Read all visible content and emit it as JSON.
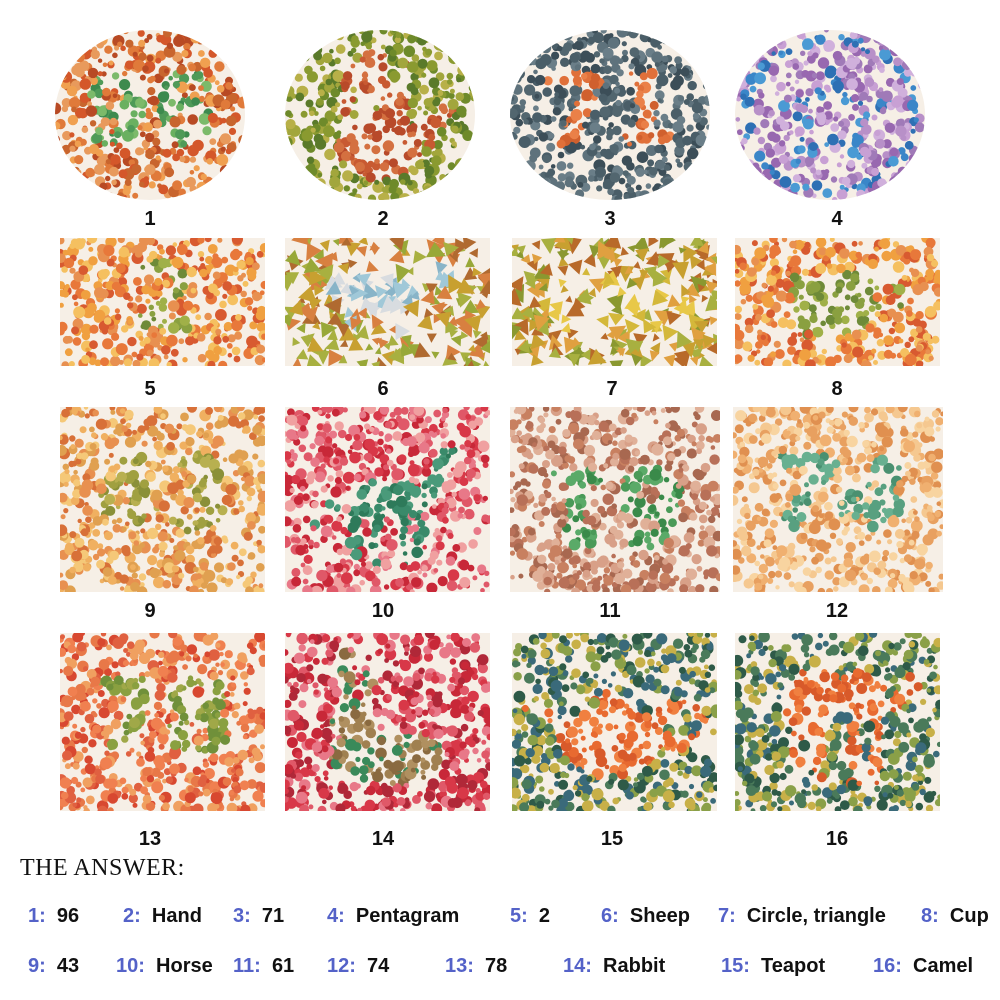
{
  "colors": {
    "answer_number": "#5462c8",
    "text": "#111111",
    "background": "#ffffff"
  },
  "plates": [
    {
      "number": "1",
      "figure_text": "96",
      "figure_shape": "",
      "palette": [
        "#e07a3a",
        "#d4572a",
        "#f0a050",
        "#c8652e",
        "#e89a5c",
        "#b84a24"
      ],
      "figure_palette": [
        "#4f9a58",
        "#6ab060",
        "#3d8a4e",
        "#7cba6a"
      ]
    },
    {
      "number": "2",
      "figure_text": "",
      "figure_shape": "hand",
      "palette": [
        "#8a9a30",
        "#6e8a2a",
        "#a2a63c",
        "#5a7a2a",
        "#b8b048"
      ],
      "figure_palette": [
        "#c85a32",
        "#d47040",
        "#b84a2a"
      ]
    },
    {
      "number": "3",
      "figure_text": "71",
      "figure_shape": "",
      "palette": [
        "#4a5e68",
        "#5e727c",
        "#3c4e58",
        "#6a7e88",
        "#52666f"
      ],
      "figure_palette": [
        "#e0703a",
        "#d0602e",
        "#ea8048"
      ]
    },
    {
      "number": "4",
      "figure_text": "",
      "figure_shape": "star",
      "palette": [
        "#b890c8",
        "#a07ab8",
        "#c8a0d4",
        "#9868b0",
        "#d0b0dc"
      ],
      "figure_palette": [
        "#3a86c8",
        "#4a9ad4",
        "#2e70b4"
      ]
    },
    {
      "number": "5",
      "figure_text": "2",
      "figure_shape": "",
      "palette": [
        "#e8783a",
        "#f0a040",
        "#d85a30",
        "#f5c060",
        "#e89050"
      ],
      "figure_palette": [
        "#8aa040",
        "#a0b048",
        "#6e8a38"
      ]
    },
    {
      "number": "6",
      "figure_text": "",
      "figure_shape": "sheep",
      "palette": [
        "#c8a030",
        "#a8b040",
        "#d88040",
        "#b06a30",
        "#98a838"
      ],
      "figure_palette": [
        "#a0c8d8",
        "#d8dce0",
        "#88b4c8"
      ]
    },
    {
      "number": "7",
      "figure_text": "",
      "figure_shape": "circle-triangle",
      "palette": [
        "#c8a030",
        "#a8b040",
        "#e0a040",
        "#8a9830",
        "#b86a2a"
      ],
      "figure_palette": [
        "#e8c848",
        "#d4b83a"
      ]
    },
    {
      "number": "8",
      "figure_text": "",
      "figure_shape": "cup",
      "palette": [
        "#e8783a",
        "#f0a040",
        "#d85a30",
        "#f5c060",
        "#e89050"
      ],
      "figure_palette": [
        "#8aa040",
        "#a0b048",
        "#6e8a38"
      ]
    },
    {
      "number": "9",
      "figure_text": "43",
      "figure_shape": "",
      "palette": [
        "#e89050",
        "#f0b060",
        "#d87038",
        "#f5c878",
        "#e0a050"
      ],
      "figure_palette": [
        "#a0a040",
        "#b8b050",
        "#8a9038"
      ]
    },
    {
      "number": "10",
      "figure_text": "",
      "figure_shape": "horse",
      "palette": [
        "#d83848",
        "#e05868",
        "#c82838",
        "#e87888",
        "#f0a0a0"
      ],
      "figure_palette": [
        "#3a8a6a",
        "#4a9a7a",
        "#2e7a5a"
      ]
    },
    {
      "number": "11",
      "figure_text": "61",
      "figure_shape": "",
      "palette": [
        "#c88060",
        "#d8a088",
        "#b87058",
        "#e0b098",
        "#a86850"
      ],
      "figure_palette": [
        "#4a9a58",
        "#5aaa68",
        "#3a8a4a"
      ]
    },
    {
      "number": "12",
      "figure_text": "74",
      "figure_shape": "",
      "palette": [
        "#f0b070",
        "#e8a060",
        "#f5c890",
        "#e09050",
        "#f8d4a0"
      ],
      "figure_palette": [
        "#58a080",
        "#68b090",
        "#4a9070"
      ]
    },
    {
      "number": "13",
      "figure_text": "78",
      "figure_shape": "",
      "palette": [
        "#e06040",
        "#f08050",
        "#d84830",
        "#f0a060",
        "#e87848"
      ],
      "figure_palette": [
        "#8aa040",
        "#a0a848",
        "#70903a"
      ]
    },
    {
      "number": "14",
      "figure_text": "",
      "figure_shape": "rabbit",
      "palette": [
        "#d83848",
        "#e05868",
        "#c82838",
        "#e87888",
        "#b02838"
      ],
      "figure_palette": [
        "#a08050",
        "#b09060",
        "#8a6a40",
        "#3a8a5a"
      ]
    },
    {
      "number": "15",
      "figure_text": "",
      "figure_shape": "teapot",
      "palette": [
        "#4a7a5a",
        "#8aa048",
        "#2e5a48",
        "#c8b048",
        "#3a6a7a"
      ],
      "figure_palette": [
        "#e86a30",
        "#f08040",
        "#d85a2a"
      ]
    },
    {
      "number": "16",
      "figure_text": "",
      "figure_shape": "camel",
      "palette": [
        "#4a7a5a",
        "#8aa048",
        "#2e5a48",
        "#c8b048",
        "#3a6a7a"
      ],
      "figure_palette": [
        "#e86a30",
        "#f08040",
        "#d85a2a"
      ]
    }
  ],
  "answer_heading": "THE ANSWER:",
  "answers": [
    {
      "number": "1:",
      "text": "96"
    },
    {
      "number": "2:",
      "text": "Hand"
    },
    {
      "number": "3:",
      "text": "71"
    },
    {
      "number": "4:",
      "text": "Pentagram"
    },
    {
      "number": "5:",
      "text": "2"
    },
    {
      "number": "6:",
      "text": "Sheep"
    },
    {
      "number": "7:",
      "text": "Circle, triangle"
    },
    {
      "number": "8:",
      "text": "Cup"
    },
    {
      "number": "9:",
      "text": "43"
    },
    {
      "number": "10:",
      "text": "Horse"
    },
    {
      "number": "11:",
      "text": "61"
    },
    {
      "number": "12:",
      "text": "74"
    },
    {
      "number": "13:",
      "text": "78"
    },
    {
      "number": "14:",
      "text": "Rabbit"
    },
    {
      "number": "15:",
      "text": "Teapot"
    },
    {
      "number": "16:",
      "text": "Camel"
    }
  ]
}
